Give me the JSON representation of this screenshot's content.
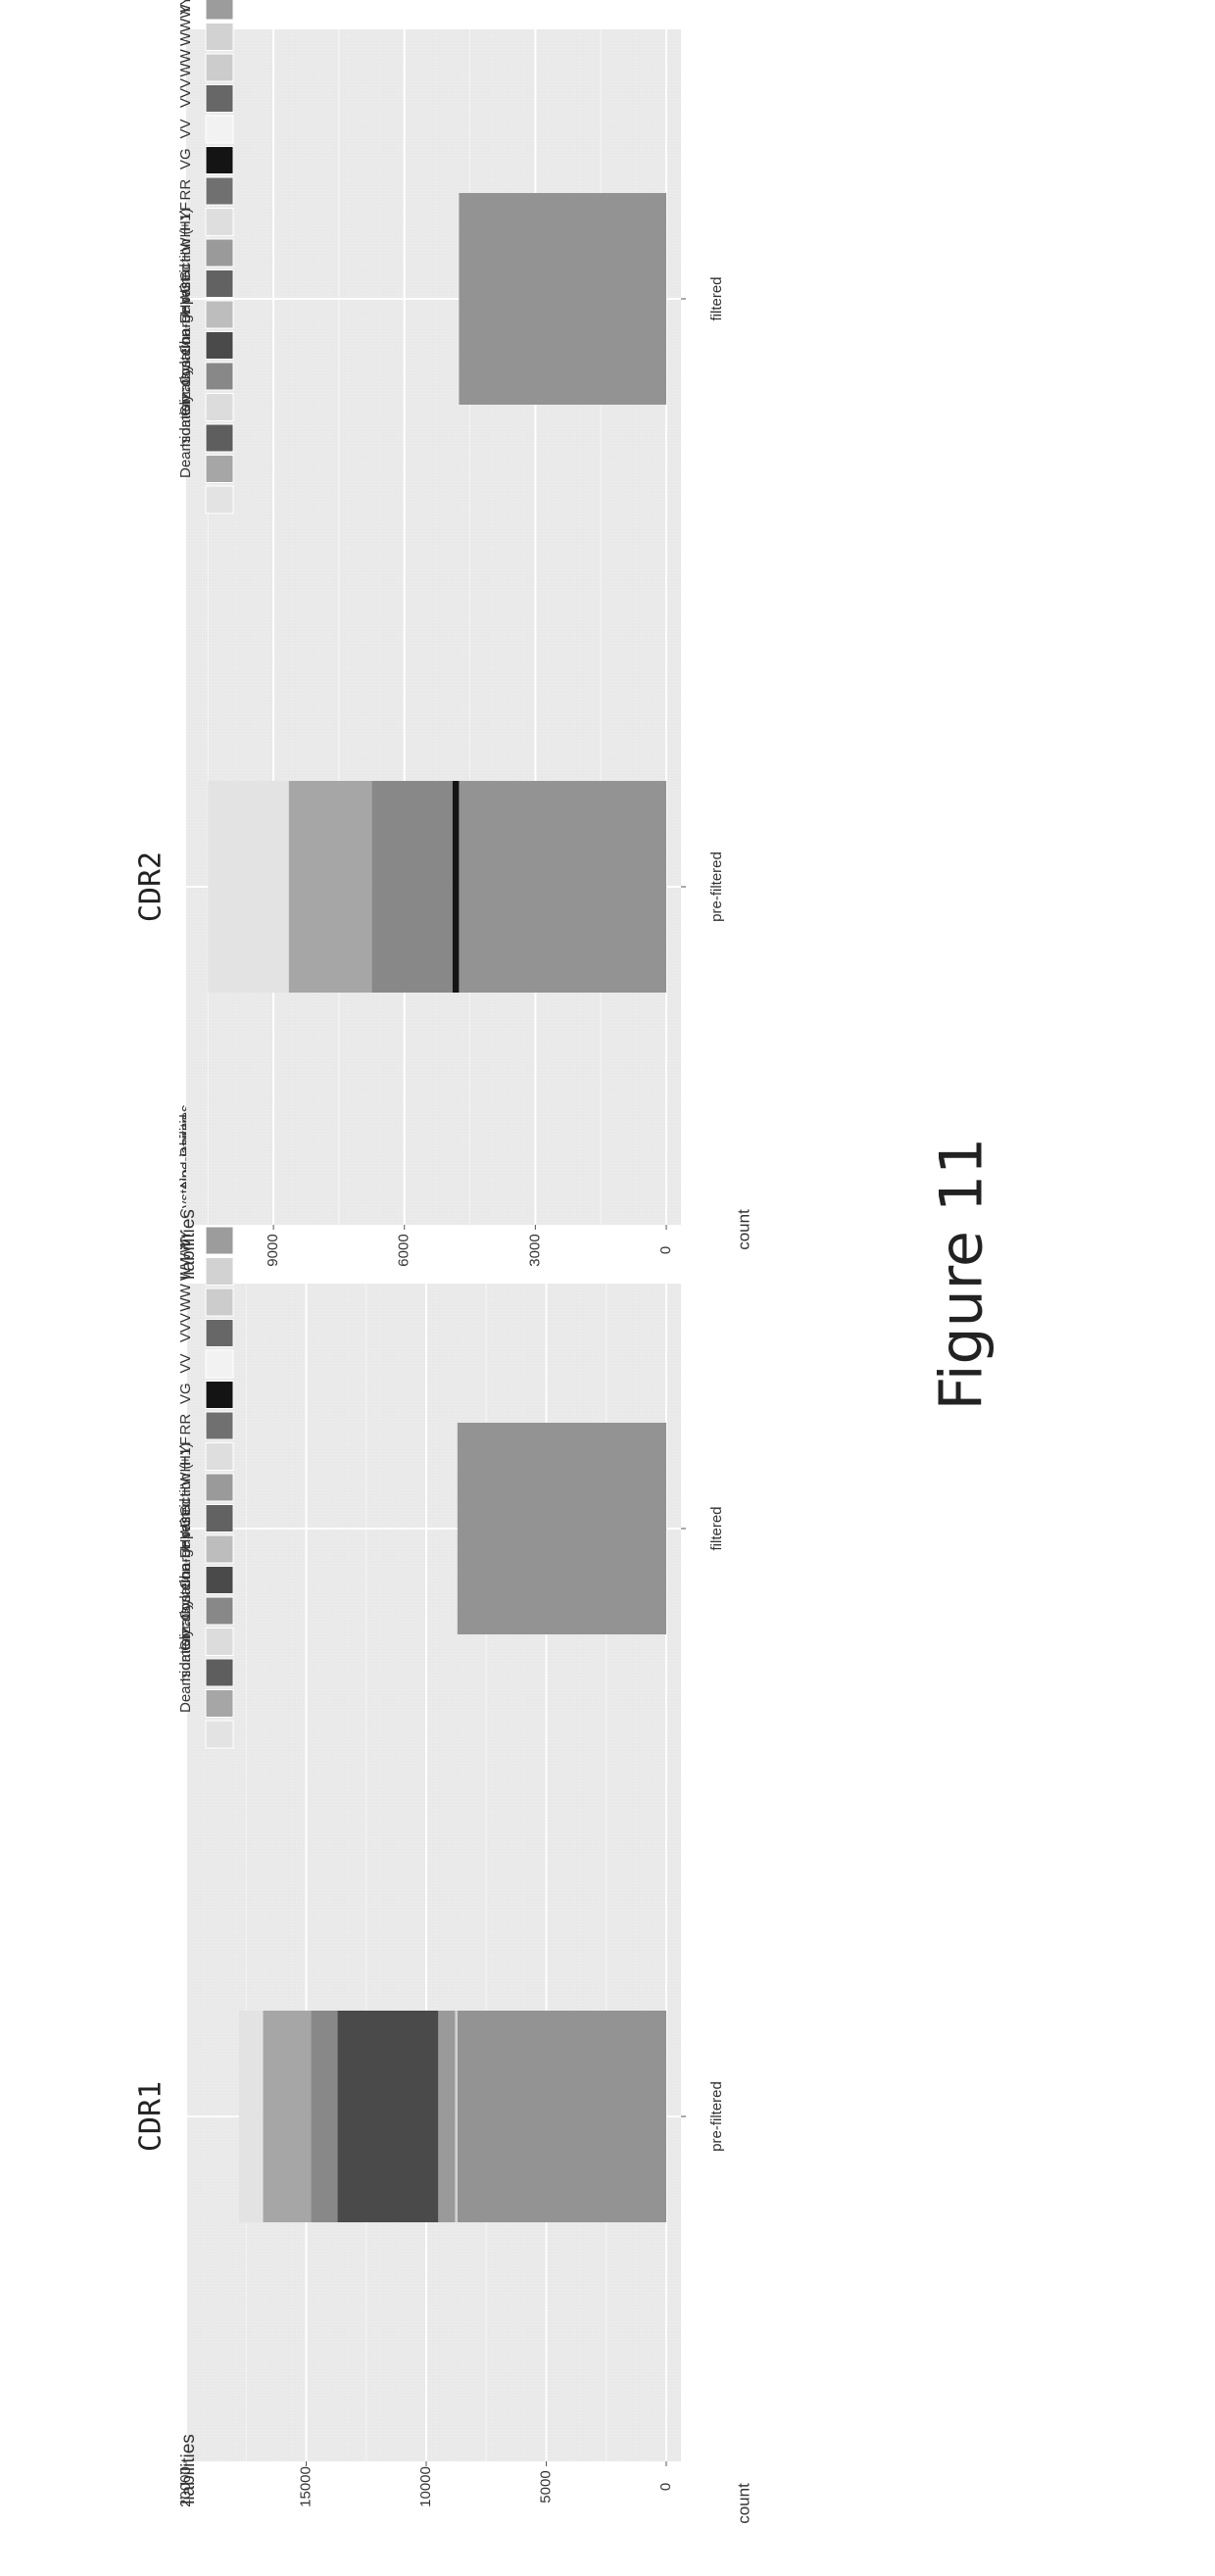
{
  "figure_title": "Figure 11",
  "colors": {
    "panel_bg": "#ebebeb",
    "grid_major": "#ffffff",
    "grid_minor": "#f4f4f4",
    "Deamidation": "#e3e3e3",
    "Isomerization": "#a6a6a6",
    "Glycosylation": "#5e5e5e",
    "Cysteine-Unpaired": "#dcdcdc",
    "Charge restriction (+1)": "#888888",
    "FHW": "#4a4a4a",
    "GG": "#bdbdbd",
    "HWH": "#626262",
    "HYF": "#9a9a9a",
    "RR": "#dedede",
    "VG": "#707070",
    "VV": "#141414",
    "VVV": "#f2f2f2",
    "WW": "#676767",
    "WWW": "#cccccc",
    "YY": "#d2d2d2",
    "Cysteine-Paired": "#9c9c9c",
    "No Liabilities": "#939393"
  },
  "chart_data": [
    {
      "type": "bar",
      "stacked": true,
      "orientation": "vertical",
      "title": "CDR1",
      "xlabel": "",
      "ylabel": "count",
      "categories": [
        "filtered",
        "pre-filtered"
      ],
      "ylim": [
        0,
        20000
      ],
      "yticks": [
        "0",
        "5000",
        "10000",
        "15000",
        "20000"
      ],
      "ytick_values": [
        0,
        5000,
        10000,
        15000,
        20000
      ],
      "grid": true,
      "legend": {
        "title": "liabilities",
        "placement": "right"
      },
      "series": [
        {
          "name": "No Liabilities",
          "values": [
            8700,
            8700
          ]
        },
        {
          "name": "Cysteine-Paired",
          "values": [
            0,
            0
          ]
        },
        {
          "name": "YY",
          "values": [
            0,
            100
          ]
        },
        {
          "name": "WWW",
          "values": [
            0,
            0
          ]
        },
        {
          "name": "WW",
          "values": [
            0,
            0
          ]
        },
        {
          "name": "VVV",
          "values": [
            0,
            0
          ]
        },
        {
          "name": "VV",
          "values": [
            0,
            0
          ]
        },
        {
          "name": "VG",
          "values": [
            0,
            0
          ]
        },
        {
          "name": "RR",
          "values": [
            0,
            0
          ]
        },
        {
          "name": "HYF",
          "values": [
            0,
            700
          ]
        },
        {
          "name": "HWH",
          "values": [
            0,
            0
          ]
        },
        {
          "name": "GG",
          "values": [
            0,
            0
          ]
        },
        {
          "name": "FHW",
          "values": [
            0,
            4200
          ]
        },
        {
          "name": "Charge restriction (+1)",
          "values": [
            0,
            1100
          ]
        },
        {
          "name": "Cysteine-Unpaired",
          "values": [
            0,
            0
          ]
        },
        {
          "name": "Glycosylation",
          "values": [
            0,
            0
          ]
        },
        {
          "name": "Isomerization",
          "values": [
            0,
            2000
          ]
        },
        {
          "name": "Deamidation",
          "values": [
            0,
            1000
          ]
        }
      ]
    },
    {
      "type": "bar",
      "stacked": true,
      "orientation": "vertical",
      "title": "CDR2",
      "xlabel": "",
      "ylabel": "count",
      "categories": [
        "filtered",
        "pre-filtered"
      ],
      "ylim": [
        0,
        11000
      ],
      "yticks": [
        "0",
        "3000",
        "6000",
        "9000"
      ],
      "ytick_values": [
        0,
        3000,
        6000,
        9000
      ],
      "grid": true,
      "legend": {
        "title": "liabilities",
        "placement": "right"
      },
      "series": [
        {
          "name": "No Liabilities",
          "values": [
            4750,
            4750
          ]
        },
        {
          "name": "Cysteine-Paired",
          "values": [
            0,
            0
          ]
        },
        {
          "name": "YY",
          "values": [
            0,
            0
          ]
        },
        {
          "name": "WWW",
          "values": [
            0,
            0
          ]
        },
        {
          "name": "WW",
          "values": [
            0,
            0
          ]
        },
        {
          "name": "VVV",
          "values": [
            0,
            0
          ]
        },
        {
          "name": "VV",
          "values": [
            0,
            150
          ]
        },
        {
          "name": "VG",
          "values": [
            0,
            0
          ]
        },
        {
          "name": "RR",
          "values": [
            0,
            0
          ]
        },
        {
          "name": "HYF",
          "values": [
            0,
            0
          ]
        },
        {
          "name": "HWH",
          "values": [
            0,
            0
          ]
        },
        {
          "name": "GG",
          "values": [
            0,
            0
          ]
        },
        {
          "name": "FHW",
          "values": [
            0,
            0
          ]
        },
        {
          "name": "Charge restriction (+1)",
          "values": [
            0,
            1850
          ]
        },
        {
          "name": "Cysteine-Unpaired",
          "values": [
            0,
            0
          ]
        },
        {
          "name": "Glycosylation",
          "values": [
            0,
            0
          ]
        },
        {
          "name": "Isomerization",
          "values": [
            0,
            1900
          ]
        },
        {
          "name": "Deamidation",
          "values": [
            0,
            1850
          ]
        }
      ]
    }
  ],
  "legend_items": [
    "Deamidation",
    "Isomerization",
    "Glycosylation",
    "Cysteine-Unpaired",
    "Charge restriction (+1)",
    "FHW",
    "GG",
    "HWH",
    "HYF",
    "RR",
    "VG",
    "VV",
    "VVV",
    "WW",
    "WWW",
    "YY",
    "Cysteine-Paired",
    "No Liabilities"
  ]
}
